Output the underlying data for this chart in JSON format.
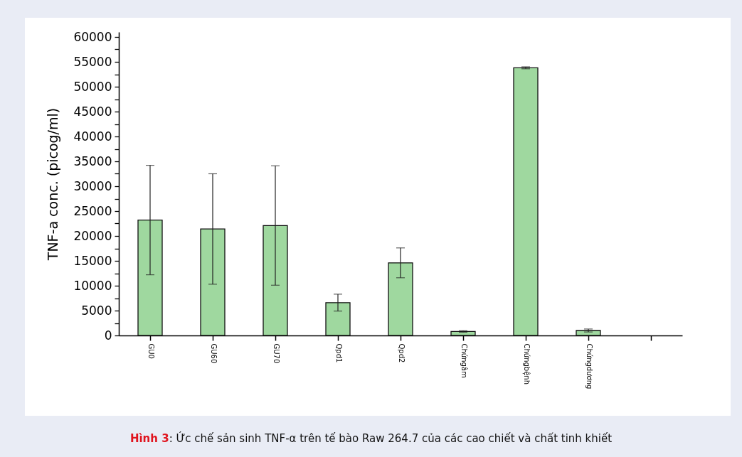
{
  "chart_data": {
    "type": "bar",
    "title": "Hình 3: Ức chế sản sinh TNF-α trên tế bào Raw 264.7 của các cao chiết và chất tinh khiết",
    "ylabel": "TNF-a conc. (picog/ml)",
    "categories": [
      "GU0",
      "GU60",
      "GU70",
      "Qpd1",
      "Qpd2",
      "Chứngâm",
      "Chứngbệnh",
      "Chứngdương",
      null
    ],
    "values": [
      23200,
      21400,
      22100,
      6600,
      14600,
      800,
      53800,
      1000,
      null
    ],
    "errors": [
      11000,
      11100,
      12000,
      1700,
      3000,
      150,
      200,
      300,
      null
    ],
    "color": "#9fd89f",
    "ylim": [
      0,
      61000
    ],
    "yticks": [
      0,
      {
        "value": 2500,
        "label": null
      },
      5000,
      {
        "value": 7500,
        "label": null
      },
      10000,
      {
        "value": 12500,
        "label": null
      },
      15000,
      {
        "value": 17500,
        "label": null
      },
      20000,
      {
        "value": 22500,
        "label": null
      },
      25000,
      {
        "value": 27500,
        "label": null
      },
      30000,
      {
        "value": 32500,
        "label": null
      },
      35000,
      {
        "value": 37500,
        "label": null
      },
      40000,
      {
        "value": 42500,
        "label": null
      },
      45000,
      {
        "value": 47500,
        "label": null
      },
      50000,
      {
        "value": 52500,
        "label": null
      },
      55000,
      {
        "value": 57500,
        "label": null
      },
      60000
    ],
    "grid": false
  }
}
